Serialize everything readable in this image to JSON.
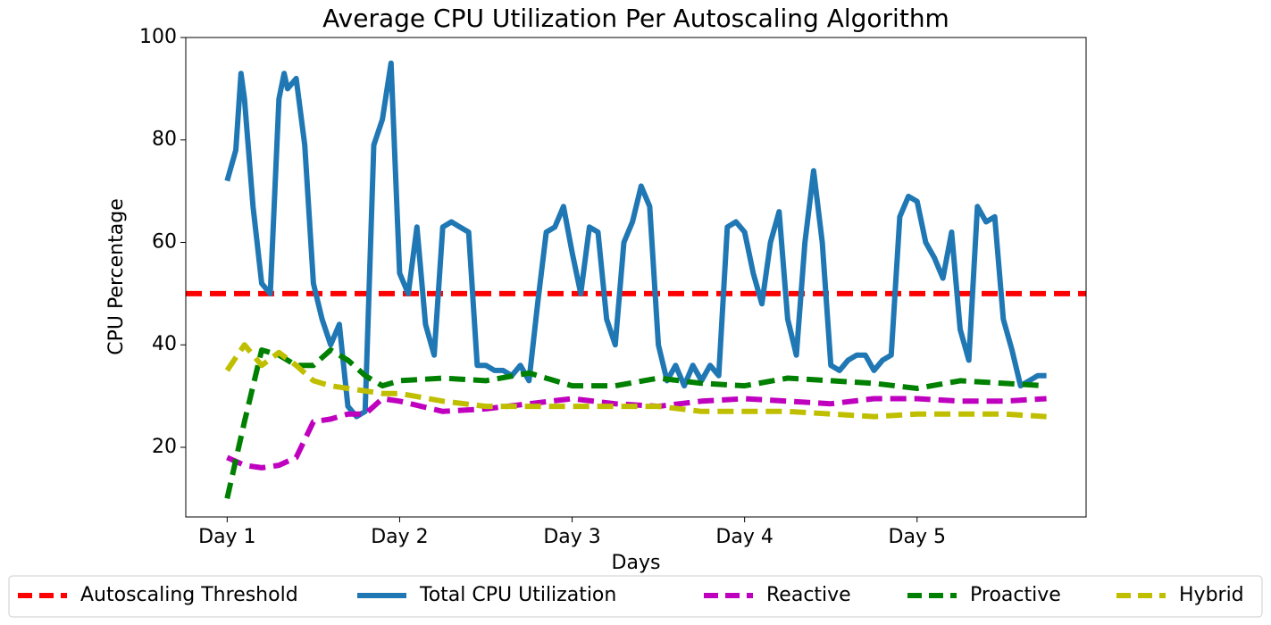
{
  "chart_data": {
    "type": "line",
    "title": "Average CPU Utilization Per Autoscaling Algorithm",
    "x_label": "Days",
    "y_label": "CPU Percentage",
    "xlim": [
      -0.24,
      4.98
    ],
    "ylim": [
      6.4,
      100
    ],
    "xticks": [
      {
        "value": 0,
        "label": "Day 1"
      },
      {
        "value": 1,
        "label": "Day 2"
      },
      {
        "value": 2,
        "label": "Day 3"
      },
      {
        "value": 3,
        "label": "Day 4"
      },
      {
        "value": 4,
        "label": "Day 5"
      }
    ],
    "yticks": [
      20,
      40,
      60,
      80,
      100
    ],
    "legend": "bottom",
    "threshold": {
      "name": "Autoscaling Threshold",
      "value": 50,
      "color": "#ff0000",
      "dash": true
    },
    "series": [
      {
        "name": "Total CPU Utilization",
        "color": "#1f77b4",
        "dash": false,
        "x": [
          0,
          0.05,
          0.08,
          0.1,
          0.15,
          0.2,
          0.25,
          0.3,
          0.33,
          0.35,
          0.4,
          0.45,
          0.5,
          0.55,
          0.6,
          0.65,
          0.7,
          0.75,
          0.8,
          0.85,
          0.9,
          0.95,
          1.0,
          1.05,
          1.1,
          1.15,
          1.2,
          1.25,
          1.3,
          1.35,
          1.4,
          1.45,
          1.5,
          1.55,
          1.6,
          1.65,
          1.7,
          1.75,
          1.8,
          1.85,
          1.9,
          1.95,
          2.0,
          2.05,
          2.1,
          2.15,
          2.2,
          2.25,
          2.3,
          2.35,
          2.4,
          2.45,
          2.5,
          2.55,
          2.6,
          2.65,
          2.7,
          2.75,
          2.8,
          2.85,
          2.9,
          2.95,
          3.0,
          3.05,
          3.1,
          3.15,
          3.2,
          3.25,
          3.3,
          3.35,
          3.4,
          3.45,
          3.5,
          3.55,
          3.6,
          3.65,
          3.7,
          3.75,
          3.8,
          3.85,
          3.9,
          3.95,
          4.0,
          4.05,
          4.1,
          4.15,
          4.2,
          4.25,
          4.3,
          4.35,
          4.4,
          4.45,
          4.5,
          4.55,
          4.6,
          4.65,
          4.7,
          4.75
        ],
        "values": [
          72,
          78,
          93,
          88,
          67,
          52,
          50,
          88,
          93,
          90,
          92,
          79,
          52,
          45,
          40,
          44,
          28,
          26,
          27,
          79,
          84,
          95,
          54,
          50,
          63,
          44,
          38,
          63,
          64,
          63,
          62,
          36,
          36,
          35,
          35,
          34,
          36,
          33,
          48,
          62,
          63,
          67,
          58,
          50,
          63,
          62,
          45,
          40,
          60,
          64,
          71,
          67,
          40,
          33,
          36,
          32,
          36,
          33,
          36,
          34,
          63,
          64,
          62,
          54,
          48,
          60,
          66,
          45,
          38,
          60,
          74,
          60,
          36,
          35,
          37,
          38,
          38,
          35,
          37,
          38,
          65,
          69,
          68,
          60,
          57,
          53,
          62,
          43,
          37,
          67,
          64,
          65,
          45,
          39,
          32,
          33,
          34,
          34
        ]
      },
      {
        "name": "Reactive",
        "color": "#bf00bf",
        "dash": true,
        "x": [
          0,
          0.1,
          0.2,
          0.3,
          0.4,
          0.5,
          0.6,
          0.7,
          0.8,
          0.9,
          1.0,
          1.25,
          1.5,
          1.75,
          2.0,
          2.25,
          2.5,
          2.75,
          3.0,
          3.25,
          3.5,
          3.75,
          4.0,
          4.25,
          4.5,
          4.75
        ],
        "values": [
          18,
          16.5,
          16,
          16.5,
          18,
          25,
          25.5,
          26.5,
          26.5,
          29.5,
          29,
          27,
          27.5,
          28.5,
          29.5,
          28.5,
          28,
          29,
          29.5,
          29,
          28.5,
          29.5,
          29.5,
          29,
          29,
          29.5
        ]
      },
      {
        "name": "Proactive",
        "color": "#008000",
        "dash": true,
        "x": [
          0,
          0.1,
          0.2,
          0.3,
          0.4,
          0.5,
          0.6,
          0.7,
          0.8,
          0.9,
          1.0,
          1.25,
          1.5,
          1.75,
          2.0,
          2.25,
          2.5,
          2.75,
          3.0,
          3.25,
          3.5,
          3.75,
          4.0,
          4.25,
          4.5,
          4.75
        ],
        "values": [
          10,
          25,
          39,
          38,
          36,
          36,
          39,
          37,
          34,
          32,
          33,
          33.5,
          33,
          34.5,
          32,
          32,
          33.5,
          32.5,
          32,
          33.5,
          33,
          32.5,
          31.5,
          33,
          32.5,
          32
        ]
      },
      {
        "name": "Hybrid",
        "color": "#bfbf00",
        "dash": true,
        "x": [
          0,
          0.1,
          0.2,
          0.3,
          0.4,
          0.5,
          0.6,
          0.7,
          0.8,
          0.9,
          1.0,
          1.25,
          1.5,
          1.75,
          2.0,
          2.25,
          2.5,
          2.75,
          3.0,
          3.25,
          3.5,
          3.75,
          4.0,
          4.25,
          4.5,
          4.75
        ],
        "values": [
          35,
          40,
          36,
          38.5,
          36,
          33,
          32,
          31.5,
          31,
          30.5,
          30.5,
          29,
          28,
          28,
          28,
          28,
          28,
          27,
          27,
          27,
          26.5,
          26,
          26.5,
          26.5,
          26.5,
          26
        ]
      }
    ]
  }
}
